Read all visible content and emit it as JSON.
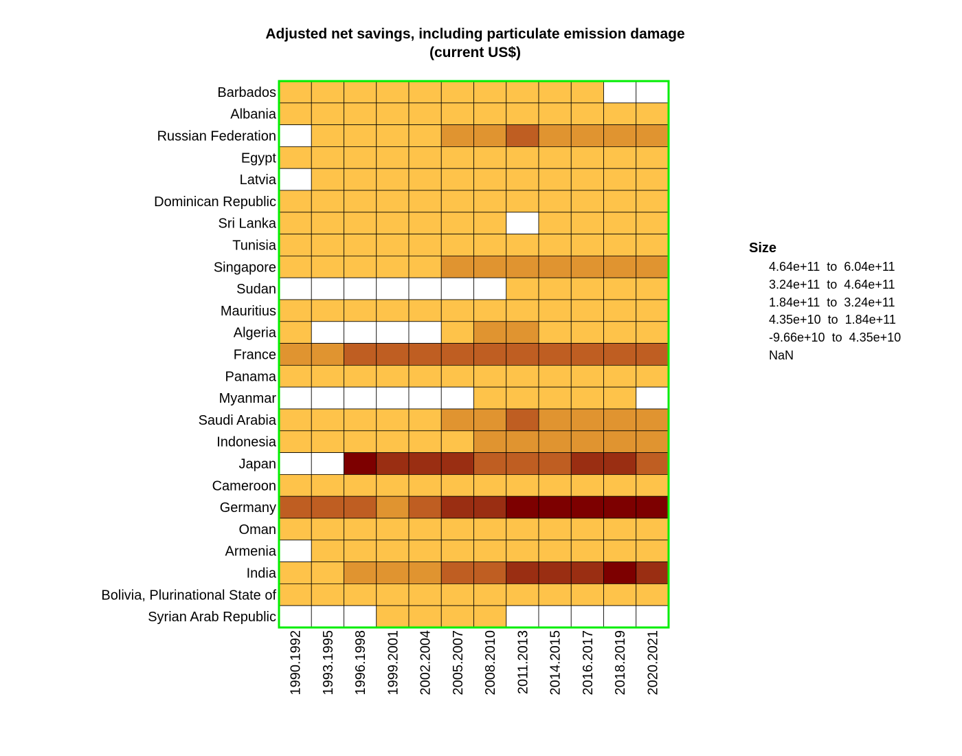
{
  "chart_data": {
    "type": "heatmap",
    "title": [
      "Adjusted net savings, including particulate emission damage",
      "(current US$)"
    ],
    "x": [
      "1990.1992",
      "1993.1995",
      "1996.1998",
      "1999.2001",
      "2002.2004",
      "2005.2007",
      "2008.2010",
      "2011.2013",
      "2014.2015",
      "2016.2017",
      "2018.2019",
      "2020.2021"
    ],
    "y": [
      "Barbados",
      "Albania",
      "Russian Federation",
      "Egypt",
      "Latvia",
      "Dominican Republic",
      "Sri Lanka",
      "Tunisia",
      "Singapore",
      "Sudan",
      "Mauritius",
      "Algeria",
      "France",
      "Panama",
      "Myanmar",
      "Saudi Arabia",
      "Indonesia",
      "Japan",
      "Cameroon",
      "Germany",
      "Oman",
      "Armenia",
      "India",
      "Bolivia, Plurinational State of",
      "Syrian Arab Republic"
    ],
    "legend_title": "Size",
    "legend": [
      {
        "label": "4.64e+11  to  6.04e+11",
        "color": "#7d0000"
      },
      {
        "label": "3.24e+11  to  4.64e+11",
        "color": "#9a2e12"
      },
      {
        "label": "1.84e+11  to  3.24e+11",
        "color": "#bf5e22"
      },
      {
        "label": "4.35e+10  to  1.84e+11",
        "color": "#e09430"
      },
      {
        "label": "-9.66e+10  to  4.35e+10",
        "color": "#fec34a"
      },
      {
        "label": "NaN",
        "color": "#ffffff"
      }
    ],
    "bins_note": "cell values are legend bin indices: 0 = highest bin, 4 = lowest bin, null = NaN",
    "values": [
      [
        4,
        4,
        4,
        4,
        4,
        4,
        4,
        4,
        4,
        4,
        null,
        null
      ],
      [
        4,
        4,
        4,
        4,
        4,
        4,
        4,
        4,
        4,
        4,
        4,
        4
      ],
      [
        null,
        4,
        4,
        4,
        4,
        3,
        3,
        2,
        3,
        3,
        3,
        3
      ],
      [
        4,
        4,
        4,
        4,
        4,
        4,
        4,
        4,
        4,
        4,
        4,
        4
      ],
      [
        null,
        4,
        4,
        4,
        4,
        4,
        4,
        4,
        4,
        4,
        4,
        4
      ],
      [
        4,
        4,
        4,
        4,
        4,
        4,
        4,
        4,
        4,
        4,
        4,
        4
      ],
      [
        4,
        4,
        4,
        4,
        4,
        4,
        4,
        null,
        4,
        4,
        4,
        4
      ],
      [
        4,
        4,
        4,
        4,
        4,
        4,
        4,
        4,
        4,
        4,
        4,
        4
      ],
      [
        4,
        4,
        4,
        4,
        4,
        3,
        3,
        3,
        3,
        3,
        3,
        3
      ],
      [
        null,
        null,
        null,
        null,
        null,
        null,
        null,
        4,
        4,
        4,
        4,
        4
      ],
      [
        4,
        4,
        4,
        4,
        4,
        4,
        4,
        4,
        4,
        4,
        4,
        4
      ],
      [
        4,
        null,
        null,
        null,
        null,
        4,
        3,
        3,
        4,
        4,
        4,
        4
      ],
      [
        3,
        3,
        2,
        2,
        2,
        2,
        2,
        2,
        2,
        2,
        2,
        2
      ],
      [
        4,
        4,
        4,
        4,
        4,
        4,
        4,
        4,
        4,
        4,
        4,
        4
      ],
      [
        null,
        null,
        null,
        null,
        null,
        null,
        4,
        4,
        4,
        4,
        4,
        null
      ],
      [
        4,
        4,
        4,
        4,
        4,
        3,
        3,
        2,
        3,
        3,
        3,
        3
      ],
      [
        4,
        4,
        4,
        4,
        4,
        4,
        3,
        3,
        3,
        3,
        3,
        3
      ],
      [
        null,
        null,
        0,
        1,
        1,
        1,
        2,
        2,
        2,
        1,
        1,
        2
      ],
      [
        4,
        4,
        4,
        4,
        4,
        4,
        4,
        4,
        4,
        4,
        4,
        4
      ],
      [
        2,
        2,
        2,
        3,
        2,
        1,
        1,
        0,
        0,
        0,
        0,
        0
      ],
      [
        4,
        4,
        4,
        4,
        4,
        4,
        4,
        4,
        4,
        4,
        4,
        4
      ],
      [
        null,
        4,
        4,
        4,
        4,
        4,
        4,
        4,
        4,
        4,
        4,
        4
      ],
      [
        4,
        4,
        3,
        3,
        3,
        2,
        2,
        1,
        1,
        1,
        0,
        1
      ],
      [
        4,
        4,
        4,
        4,
        4,
        4,
        4,
        4,
        4,
        4,
        4,
        4
      ],
      [
        null,
        null,
        null,
        4,
        4,
        4,
        4,
        null,
        null,
        null,
        null,
        null
      ]
    ],
    "frame_color": "#00ee00",
    "grid": true
  }
}
